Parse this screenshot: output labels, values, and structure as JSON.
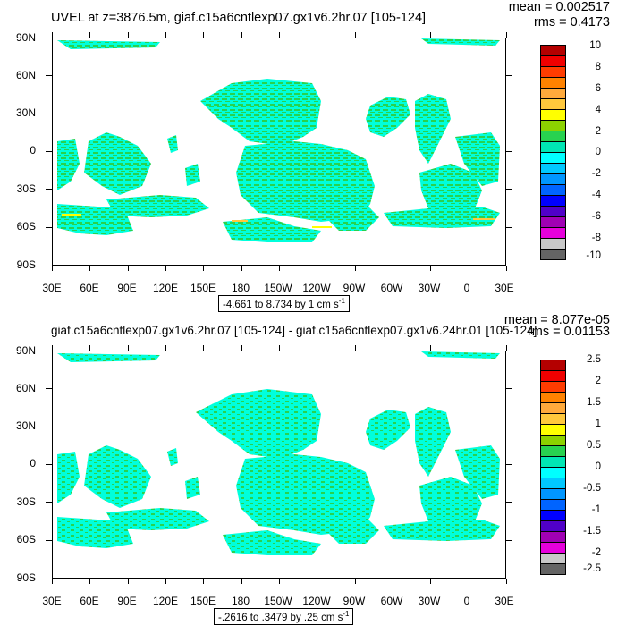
{
  "panels": [
    {
      "title": "UVEL at z=3876.5m, giaf.c15a6cntlexp07.gx1v6.2hr.07 [105-124]",
      "mean": "mean = 0.002517",
      "rms": "rms = 0.4173",
      "range_text": "-4.661 to 8.734 by 1 cm s",
      "range_sup": "-1",
      "colorbar_labels": [
        "10",
        "8",
        "6",
        "4",
        "2",
        "0",
        "-2",
        "-4",
        "-6",
        "-8",
        "-10"
      ]
    },
    {
      "title": "giaf.c15a6cntlexp07.gx1v6.2hr.07 [105-124] - giaf.c15a6cntlexp07.gx1v6.24hr.01 [105-124]",
      "mean": "mean = 8.077e-05",
      "rms": "rms = 0.01153",
      "range_text": "-.2616 to .3479 by .25 cm s",
      "range_sup": "-1",
      "colorbar_labels": [
        "2.5",
        "2",
        "1.5",
        "1",
        "0.5",
        "0",
        "-0.5",
        "-1",
        "-1.5",
        "-2",
        "-2.5"
      ]
    }
  ],
  "axes": {
    "y_ticks": [
      "90N",
      "60N",
      "30N",
      "0",
      "30S",
      "60S",
      "90S"
    ],
    "x_ticks": [
      "30E",
      "60E",
      "90E",
      "120E",
      "150E",
      "180",
      "150W",
      "120W",
      "90W",
      "60W",
      "30W",
      "0",
      "30E"
    ]
  },
  "colors": {
    "colorbar": [
      "#b40000",
      "#f00000",
      "#ff3c00",
      "#ff8200",
      "#ffaa3c",
      "#ffc83c",
      "#ffff00",
      "#8cd200",
      "#28d250",
      "#00e6b4",
      "#00ffff",
      "#00c8ff",
      "#0096ff",
      "#0064ff",
      "#0000ff",
      "#5000c8",
      "#a000b4",
      "#e600dc",
      "#c8c8c8",
      "#646464"
    ],
    "ocean_fill": "#00ffdc",
    "ocean_fill_bottom": "#00ffdc",
    "speckle": "#28d250"
  },
  "chart_data": [
    {
      "type": "heatmap",
      "title": "UVEL at z=3876.5m, giaf.c15a6cntlexp07.gx1v6.2hr.07 [105-124]",
      "map_projection": "cylindrical equidistant",
      "xlabel": "",
      "ylabel": "",
      "x_ticks": [
        "30E",
        "60E",
        "90E",
        "120E",
        "150E",
        "180",
        "150W",
        "120W",
        "90W",
        "60W",
        "30W",
        "0",
        "30E"
      ],
      "y_ticks": [
        "90N",
        "60N",
        "30N",
        "0",
        "30S",
        "60S",
        "90S"
      ],
      "contour_levels": [
        -10,
        -8,
        -6,
        -4,
        -2,
        0,
        2,
        4,
        6,
        8,
        10
      ],
      "value_range": [
        -4.661,
        8.734
      ],
      "contour_interval": 1,
      "units": "cm s-1",
      "mean": 0.002517,
      "rms": 0.4173
    },
    {
      "type": "heatmap",
      "title": "giaf.c15a6cntlexp07.gx1v6.2hr.07 [105-124] - giaf.c15a6cntlexp07.gx1v6.24hr.01 [105-124]",
      "map_projection": "cylindrical equidistant",
      "xlabel": "",
      "ylabel": "",
      "x_ticks": [
        "30E",
        "60E",
        "90E",
        "120E",
        "150E",
        "180",
        "150W",
        "120W",
        "90W",
        "60W",
        "30W",
        "0",
        "30E"
      ],
      "y_ticks": [
        "90N",
        "60N",
        "30N",
        "0",
        "30S",
        "60S",
        "90S"
      ],
      "contour_levels": [
        -2.5,
        -2,
        -1.5,
        -1,
        -0.5,
        0,
        0.5,
        1,
        1.5,
        2,
        2.5
      ],
      "value_range": [
        -0.2616,
        0.3479
      ],
      "contour_interval": 0.25,
      "units": "cm s-1",
      "mean": 8.077e-05,
      "rms": 0.01153
    }
  ]
}
